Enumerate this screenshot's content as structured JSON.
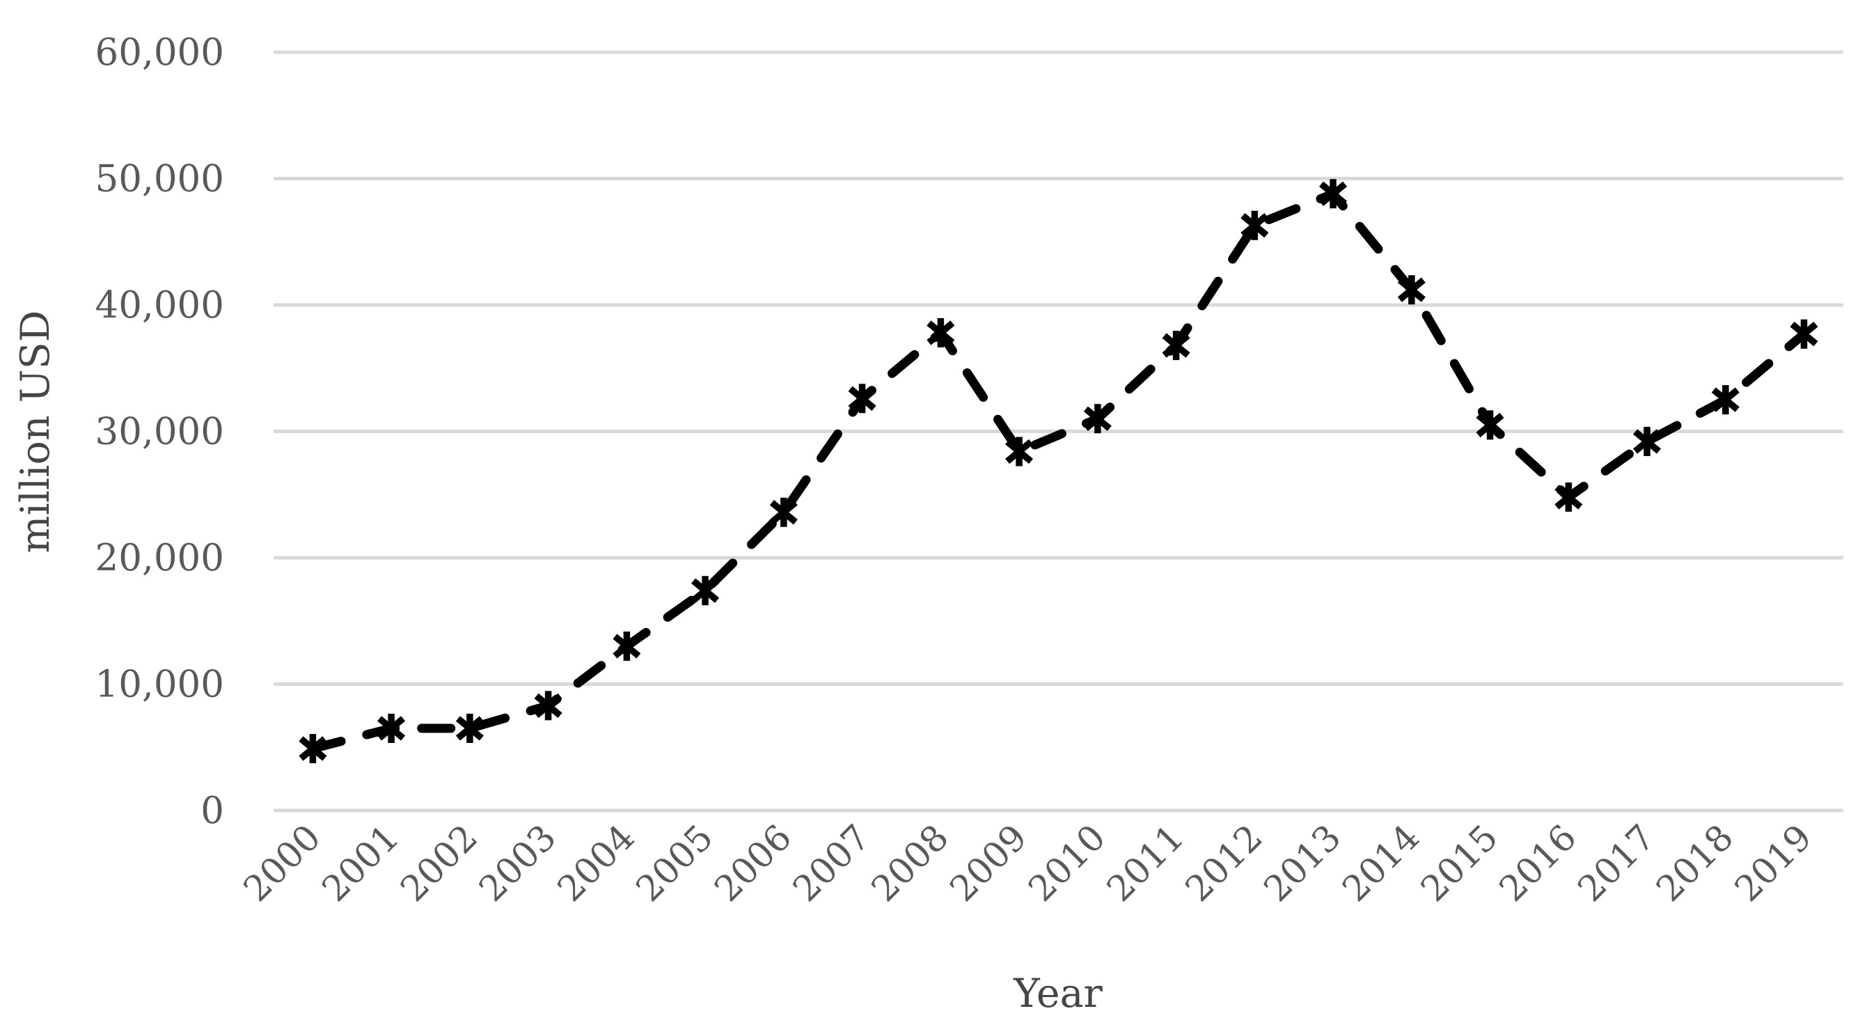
{
  "chart": {
    "y_axis_title": "million USD",
    "x_axis_title": "Year"
  },
  "chart_data": {
    "type": "line",
    "xlabel": "Year",
    "ylabel": "million USD",
    "categories": [
      "2000",
      "2001",
      "2002",
      "2003",
      "2004",
      "2005",
      "2006",
      "2007",
      "2008",
      "2009",
      "2010",
      "2011",
      "2012",
      "2013",
      "2014",
      "2015",
      "2016",
      "2017",
      "2018",
      "2019"
    ],
    "series": [
      {
        "name": "million USD",
        "values": [
          4900,
          6500,
          6500,
          8300,
          13000,
          17400,
          23600,
          32600,
          37800,
          28400,
          31000,
          36800,
          46300,
          48800,
          41200,
          30500,
          24800,
          29200,
          32500,
          37700
        ]
      }
    ],
    "ylim": [
      0,
      60000
    ],
    "ytick_step": 10000,
    "ytick_labels": [
      "0",
      "10,000",
      "20,000",
      "30,000",
      "40,000",
      "50,000",
      "60,000"
    ],
    "grid": true,
    "legend_position": "none",
    "line_style": "dashed",
    "marker": "asterisk",
    "colors": {
      "series": "#000000",
      "gridline": "#d9d9d9",
      "tick_label": "#595959",
      "axis_title": "#454545",
      "background": "#ffffff"
    }
  }
}
